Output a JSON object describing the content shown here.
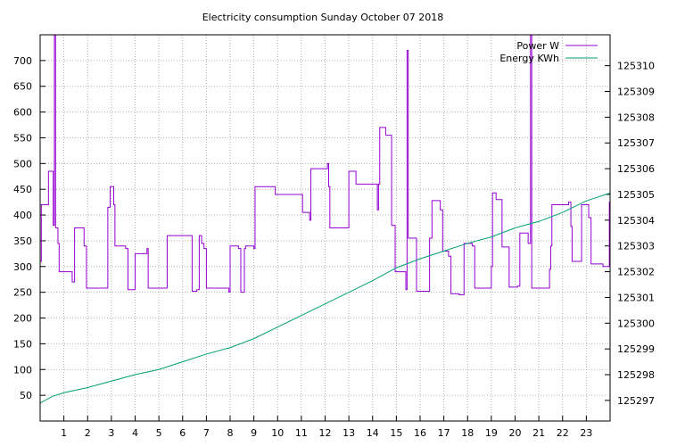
{
  "chart_data": {
    "type": "line",
    "title": "Electricity consumption Sunday October 07 2018",
    "xlabel": "",
    "ylabel": "",
    "y2label": "",
    "xlim": [
      0,
      24
    ],
    "ylim": [
      0,
      750
    ],
    "y2lim": [
      125296.2,
      125311.2
    ],
    "x_ticks": [
      1,
      2,
      3,
      4,
      5,
      6,
      7,
      8,
      9,
      10,
      11,
      12,
      13,
      14,
      15,
      16,
      17,
      18,
      19,
      20,
      21,
      22,
      23
    ],
    "y_ticks": [
      50,
      100,
      150,
      200,
      250,
      300,
      350,
      400,
      450,
      500,
      550,
      600,
      650,
      700
    ],
    "y2_ticks": [
      125297,
      125298,
      125299,
      125300,
      125301,
      125302,
      125303,
      125304,
      125305,
      125306,
      125307,
      125308,
      125309,
      125310
    ],
    "grid": true,
    "legend_position": "top-right",
    "series": [
      {
        "name": "Power W",
        "axis": "left",
        "color": "#9400d3",
        "step": true,
        "points": [
          [
            0.0,
            310
          ],
          [
            0.05,
            420
          ],
          [
            0.35,
            485
          ],
          [
            0.55,
            380
          ],
          [
            0.6,
            750
          ],
          [
            0.65,
            375
          ],
          [
            0.75,
            345
          ],
          [
            0.8,
            290
          ],
          [
            1.35,
            270
          ],
          [
            1.45,
            375
          ],
          [
            1.85,
            340
          ],
          [
            1.95,
            258
          ],
          [
            2.85,
            415
          ],
          [
            2.95,
            455
          ],
          [
            3.1,
            420
          ],
          [
            3.15,
            340
          ],
          [
            3.6,
            335
          ],
          [
            3.7,
            255
          ],
          [
            4.0,
            325
          ],
          [
            4.5,
            335
          ],
          [
            4.55,
            258
          ],
          [
            5.35,
            360
          ],
          [
            6.4,
            252
          ],
          [
            6.6,
            255
          ],
          [
            6.7,
            360
          ],
          [
            6.8,
            345
          ],
          [
            6.9,
            335
          ],
          [
            7.0,
            258
          ],
          [
            7.95,
            250
          ],
          [
            8.0,
            340
          ],
          [
            8.35,
            335
          ],
          [
            8.45,
            250
          ],
          [
            8.55,
            250
          ],
          [
            8.6,
            335
          ],
          [
            8.65,
            340
          ],
          [
            9.0,
            335
          ],
          [
            9.05,
            455
          ],
          [
            9.9,
            440
          ],
          [
            11.05,
            405
          ],
          [
            11.35,
            390
          ],
          [
            11.4,
            490
          ],
          [
            12.1,
            500
          ],
          [
            12.15,
            455
          ],
          [
            12.2,
            375
          ],
          [
            13.0,
            485
          ],
          [
            13.3,
            460
          ],
          [
            14.2,
            410
          ],
          [
            14.25,
            460
          ],
          [
            14.3,
            570
          ],
          [
            14.55,
            555
          ],
          [
            14.8,
            380
          ],
          [
            14.95,
            290
          ],
          [
            15.4,
            255
          ],
          [
            15.45,
            720
          ],
          [
            15.5,
            355
          ],
          [
            15.85,
            252
          ],
          [
            16.4,
            355
          ],
          [
            16.5,
            428
          ],
          [
            16.85,
            410
          ],
          [
            16.95,
            330
          ],
          [
            17.2,
            320
          ],
          [
            17.3,
            247
          ],
          [
            17.65,
            245
          ],
          [
            17.85,
            345
          ],
          [
            18.2,
            340
          ],
          [
            18.3,
            258
          ],
          [
            19.0,
            300
          ],
          [
            19.05,
            443
          ],
          [
            19.2,
            430
          ],
          [
            19.45,
            338
          ],
          [
            19.75,
            260
          ],
          [
            20.1,
            262
          ],
          [
            20.2,
            365
          ],
          [
            20.55,
            345
          ],
          [
            20.65,
            750
          ],
          [
            20.7,
            258
          ],
          [
            21.45,
            295
          ],
          [
            21.5,
            340
          ],
          [
            21.55,
            420
          ],
          [
            22.05,
            420
          ],
          [
            22.25,
            425
          ],
          [
            22.35,
            378
          ],
          [
            22.4,
            310
          ],
          [
            22.8,
            420
          ],
          [
            23.1,
            395
          ],
          [
            23.2,
            305
          ],
          [
            23.7,
            300
          ],
          [
            23.97,
            425
          ],
          [
            24.0,
            425
          ]
        ]
      },
      {
        "name": "Energy KWh",
        "axis": "right",
        "color": "#009e73",
        "step": false,
        "points": [
          [
            0.0,
            125296.9
          ],
          [
            0.5,
            125297.15
          ],
          [
            1.0,
            125297.3
          ],
          [
            2.0,
            125297.5
          ],
          [
            3.0,
            125297.75
          ],
          [
            4.0,
            125298.0
          ],
          [
            5.0,
            125298.2
          ],
          [
            6.0,
            125298.5
          ],
          [
            7.0,
            125298.8
          ],
          [
            8.0,
            125299.05
          ],
          [
            9.0,
            125299.4
          ],
          [
            10.0,
            125299.85
          ],
          [
            11.0,
            125300.3
          ],
          [
            12.0,
            125300.75
          ],
          [
            13.0,
            125301.2
          ],
          [
            14.0,
            125301.65
          ],
          [
            15.0,
            125302.15
          ],
          [
            16.0,
            125302.5
          ],
          [
            17.0,
            125302.8
          ],
          [
            18.0,
            125303.1
          ],
          [
            19.0,
            125303.35
          ],
          [
            20.0,
            125303.7
          ],
          [
            21.0,
            125303.95
          ],
          [
            22.0,
            125304.3
          ],
          [
            23.0,
            125304.75
          ],
          [
            24.0,
            125305.05
          ]
        ]
      }
    ]
  }
}
